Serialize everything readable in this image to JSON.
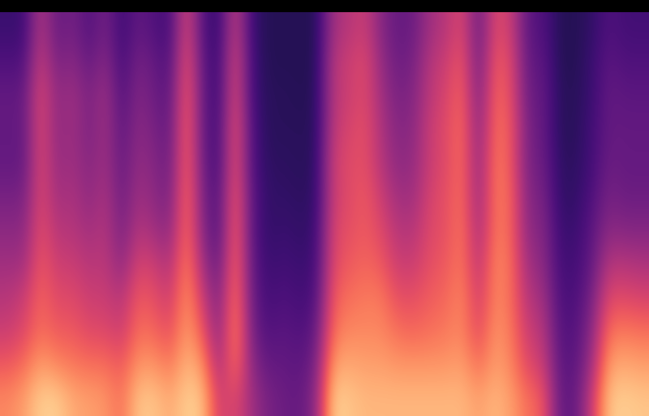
{
  "chart_data": {
    "type": "heatmap",
    "tick_labels": false,
    "color_range": [
      0,
      1
    ],
    "cells": [
      [
        0.2,
        0.25,
        0.3,
        0.3,
        0.3,
        0.35,
        0.4,
        0.45,
        0.5,
        0.55,
        0.65,
        0.75
      ],
      [
        0.2,
        0.25,
        0.3,
        0.3,
        0.3,
        0.35,
        0.4,
        0.45,
        0.55,
        0.6,
        0.7,
        0.8
      ],
      [
        0.5,
        0.55,
        0.6,
        0.6,
        0.6,
        0.6,
        0.62,
        0.65,
        0.68,
        0.7,
        0.8,
        0.9
      ],
      [
        0.3,
        0.35,
        0.4,
        0.4,
        0.42,
        0.45,
        0.5,
        0.55,
        0.6,
        0.65,
        0.75,
        0.9
      ],
      [
        0.35,
        0.4,
        0.45,
        0.45,
        0.45,
        0.48,
        0.5,
        0.55,
        0.6,
        0.65,
        0.72,
        0.82
      ],
      [
        0.25,
        0.3,
        0.35,
        0.35,
        0.38,
        0.4,
        0.45,
        0.5,
        0.55,
        0.6,
        0.7,
        0.8
      ],
      [
        0.35,
        0.4,
        0.45,
        0.45,
        0.45,
        0.48,
        0.5,
        0.52,
        0.55,
        0.6,
        0.7,
        0.78
      ],
      [
        0.2,
        0.22,
        0.25,
        0.28,
        0.3,
        0.32,
        0.35,
        0.4,
        0.5,
        0.55,
        0.65,
        0.7
      ],
      [
        0.3,
        0.35,
        0.38,
        0.4,
        0.42,
        0.45,
        0.5,
        0.58,
        0.65,
        0.7,
        0.78,
        0.88
      ],
      [
        0.25,
        0.3,
        0.32,
        0.35,
        0.38,
        0.4,
        0.45,
        0.55,
        0.62,
        0.68,
        0.78,
        0.88
      ],
      [
        0.22,
        0.25,
        0.28,
        0.3,
        0.32,
        0.35,
        0.4,
        0.48,
        0.55,
        0.62,
        0.72,
        0.82
      ],
      [
        0.6,
        0.65,
        0.68,
        0.7,
        0.7,
        0.72,
        0.72,
        0.75,
        0.78,
        0.8,
        0.85,
        0.9
      ],
      [
        0.25,
        0.28,
        0.3,
        0.3,
        0.32,
        0.35,
        0.38,
        0.45,
        0.55,
        0.65,
        0.78,
        0.88
      ],
      [
        0.18,
        0.2,
        0.2,
        0.22,
        0.22,
        0.25,
        0.25,
        0.3,
        0.35,
        0.38,
        0.45,
        0.55
      ],
      [
        0.55,
        0.6,
        0.62,
        0.65,
        0.65,
        0.68,
        0.7,
        0.72,
        0.75,
        0.78,
        0.72,
        0.6
      ],
      [
        0.2,
        0.22,
        0.22,
        0.25,
        0.25,
        0.28,
        0.28,
        0.3,
        0.32,
        0.35,
        0.4,
        0.45
      ],
      [
        0.15,
        0.15,
        0.16,
        0.16,
        0.17,
        0.18,
        0.18,
        0.2,
        0.22,
        0.25,
        0.3,
        0.35
      ],
      [
        0.15,
        0.15,
        0.16,
        0.16,
        0.17,
        0.18,
        0.2,
        0.22,
        0.25,
        0.28,
        0.3,
        0.32
      ],
      [
        0.15,
        0.15,
        0.15,
        0.16,
        0.16,
        0.17,
        0.18,
        0.2,
        0.22,
        0.25,
        0.28,
        0.3
      ],
      [
        0.15,
        0.15,
        0.16,
        0.16,
        0.17,
        0.18,
        0.2,
        0.22,
        0.25,
        0.3,
        0.35,
        0.4
      ],
      [
        0.45,
        0.5,
        0.5,
        0.52,
        0.55,
        0.55,
        0.58,
        0.6,
        0.65,
        0.7,
        0.8,
        0.9
      ],
      [
        0.5,
        0.55,
        0.55,
        0.58,
        0.6,
        0.6,
        0.62,
        0.65,
        0.7,
        0.75,
        0.82,
        0.88
      ],
      [
        0.55,
        0.6,
        0.6,
        0.62,
        0.62,
        0.65,
        0.65,
        0.68,
        0.72,
        0.75,
        0.8,
        0.85
      ],
      [
        0.38,
        0.42,
        0.45,
        0.48,
        0.5,
        0.55,
        0.6,
        0.65,
        0.72,
        0.75,
        0.8,
        0.85
      ],
      [
        0.3,
        0.32,
        0.35,
        0.38,
        0.4,
        0.45,
        0.5,
        0.55,
        0.62,
        0.7,
        0.78,
        0.85
      ],
      [
        0.32,
        0.35,
        0.38,
        0.4,
        0.42,
        0.45,
        0.5,
        0.55,
        0.62,
        0.68,
        0.78,
        0.85
      ],
      [
        0.45,
        0.5,
        0.52,
        0.55,
        0.55,
        0.58,
        0.6,
        0.62,
        0.66,
        0.7,
        0.78,
        0.85
      ],
      [
        0.5,
        0.55,
        0.58,
        0.6,
        0.6,
        0.62,
        0.62,
        0.65,
        0.68,
        0.72,
        0.78,
        0.85
      ],
      [
        0.6,
        0.65,
        0.68,
        0.7,
        0.7,
        0.7,
        0.72,
        0.72,
        0.75,
        0.75,
        0.8,
        0.85
      ],
      [
        0.3,
        0.32,
        0.35,
        0.38,
        0.4,
        0.42,
        0.45,
        0.5,
        0.55,
        0.6,
        0.7,
        0.8
      ],
      [
        0.6,
        0.65,
        0.68,
        0.7,
        0.72,
        0.72,
        0.72,
        0.75,
        0.75,
        0.78,
        0.8,
        0.85
      ],
      [
        0.55,
        0.6,
        0.62,
        0.65,
        0.65,
        0.68,
        0.68,
        0.7,
        0.7,
        0.72,
        0.75,
        0.8
      ],
      [
        0.28,
        0.3,
        0.32,
        0.35,
        0.35,
        0.38,
        0.4,
        0.45,
        0.5,
        0.55,
        0.6,
        0.7
      ],
      [
        0.25,
        0.28,
        0.3,
        0.3,
        0.32,
        0.35,
        0.38,
        0.4,
        0.45,
        0.5,
        0.55,
        0.65
      ],
      [
        0.15,
        0.15,
        0.16,
        0.16,
        0.17,
        0.18,
        0.2,
        0.22,
        0.24,
        0.26,
        0.28,
        0.3
      ],
      [
        0.15,
        0.15,
        0.16,
        0.16,
        0.17,
        0.18,
        0.2,
        0.22,
        0.24,
        0.26,
        0.28,
        0.3
      ],
      [
        0.18,
        0.2,
        0.2,
        0.22,
        0.22,
        0.25,
        0.28,
        0.3,
        0.35,
        0.4,
        0.45,
        0.55
      ],
      [
        0.25,
        0.28,
        0.3,
        0.3,
        0.32,
        0.35,
        0.4,
        0.5,
        0.6,
        0.7,
        0.8,
        0.88
      ],
      [
        0.22,
        0.25,
        0.28,
        0.3,
        0.3,
        0.32,
        0.38,
        0.5,
        0.6,
        0.72,
        0.82,
        0.9
      ],
      [
        0.22,
        0.25,
        0.28,
        0.3,
        0.3,
        0.32,
        0.38,
        0.48,
        0.58,
        0.7,
        0.8,
        0.88
      ]
    ]
  }
}
